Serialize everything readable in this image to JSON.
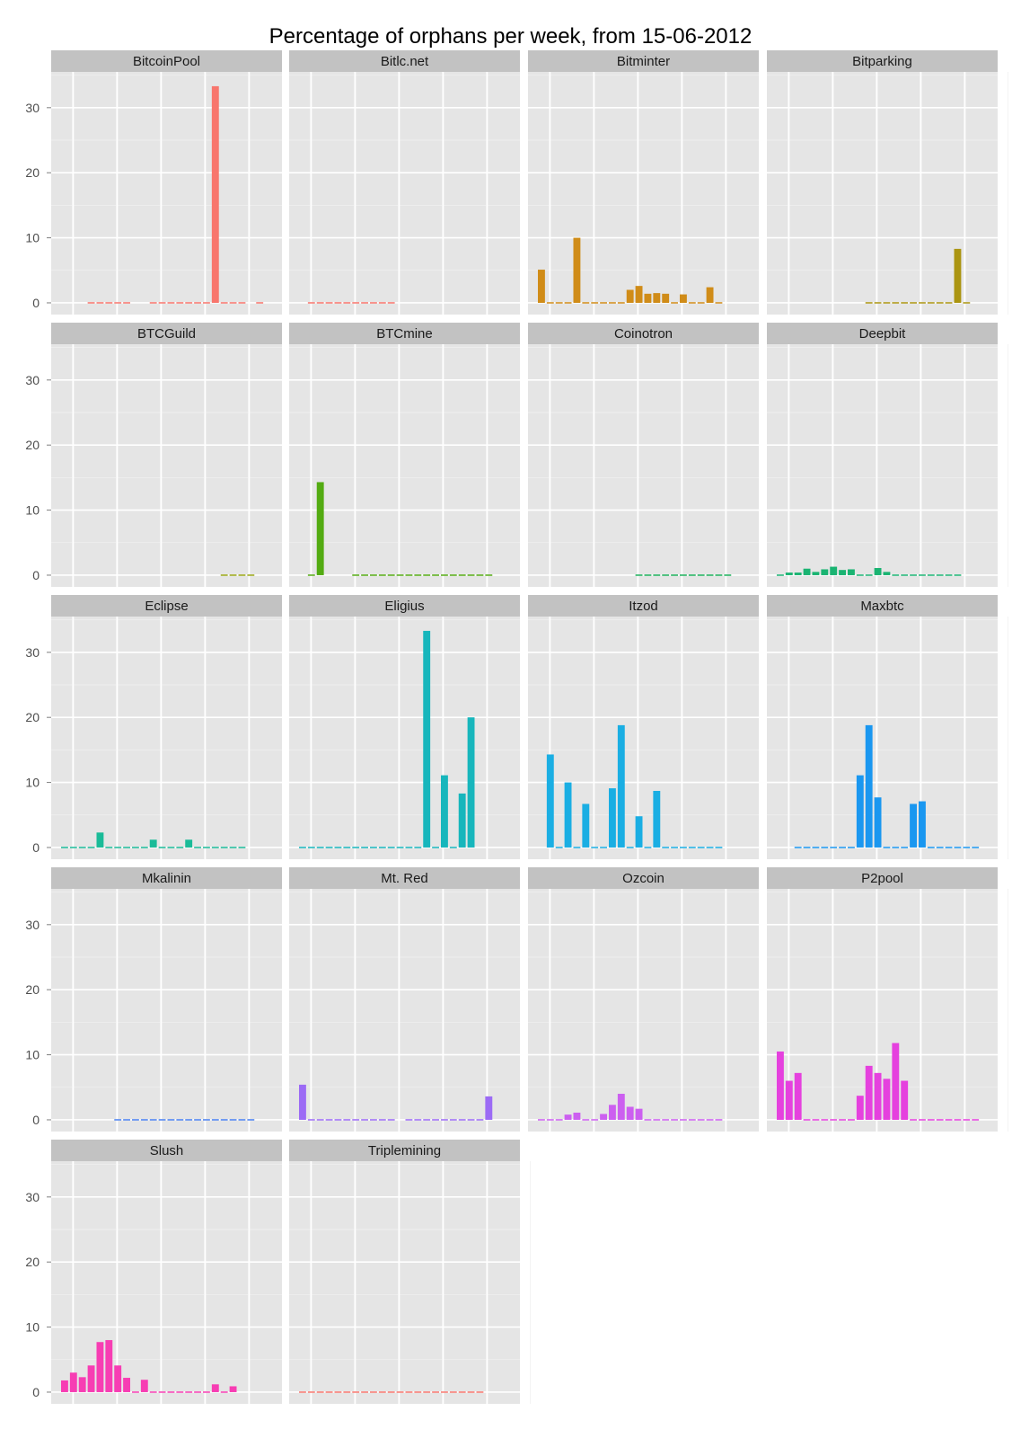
{
  "chart_data": {
    "type": "bar",
    "title": "Percentage of orphans per week, from 15-06-2012",
    "xlabel": "",
    "ylabel": "",
    "ylim": [
      -1.8,
      35.5
    ],
    "yticks": [
      0,
      10,
      20,
      30
    ],
    "weeks": 24,
    "grid": true,
    "panels": [
      {
        "name": "BitcoinPool",
        "color": "#F8766D",
        "values": [
          null,
          null,
          null,
          0,
          0,
          0,
          0,
          0,
          null,
          null,
          0,
          0,
          0,
          0,
          0,
          0,
          0,
          33.3,
          0,
          0,
          0,
          null,
          0,
          null
        ]
      },
      {
        "name": "Bitlc.net",
        "color": "#F8766D",
        "values": [
          null,
          0,
          0,
          0,
          0,
          0,
          0,
          0,
          0,
          0,
          0,
          null,
          null,
          null,
          null,
          null,
          null,
          null,
          null,
          null,
          null,
          null,
          null,
          null
        ]
      },
      {
        "name": "Bitminter",
        "color": "#D08C18",
        "values": [
          5.1,
          0,
          0,
          0,
          10.0,
          0,
          0,
          0,
          0,
          0,
          2.0,
          2.6,
          1.4,
          1.5,
          1.4,
          0,
          1.3,
          0,
          0,
          2.4,
          0,
          null,
          null,
          null
        ]
      },
      {
        "name": "Bitparking",
        "color": "#AB9511",
        "values": [
          null,
          null,
          null,
          null,
          null,
          null,
          null,
          null,
          null,
          null,
          0,
          0,
          0,
          0,
          0,
          0,
          0,
          0,
          0,
          0,
          8.3,
          0,
          null,
          null
        ]
      },
      {
        "name": "BTCGuild",
        "color": "#9AA613",
        "values": [
          null,
          null,
          null,
          null,
          null,
          null,
          null,
          null,
          null,
          null,
          null,
          null,
          null,
          null,
          null,
          null,
          null,
          null,
          0,
          0,
          0,
          0,
          null,
          null
        ]
      },
      {
        "name": "BTCmine",
        "color": "#53AB12",
        "values": [
          null,
          0,
          14.3,
          null,
          null,
          null,
          0,
          0,
          0,
          0,
          0,
          0,
          0,
          0,
          0,
          0,
          0,
          0,
          0,
          0,
          0,
          0,
          null,
          null
        ]
      },
      {
        "name": "Coinotron",
        "color": "#1AB05A",
        "values": [
          null,
          null,
          null,
          null,
          null,
          null,
          null,
          null,
          null,
          null,
          null,
          0,
          0,
          0,
          0,
          0,
          0,
          0,
          0,
          0,
          0,
          0,
          null,
          null
        ]
      },
      {
        "name": "Deepbit",
        "color": "#1AB472",
        "values": [
          0,
          0.4,
          0.4,
          1.0,
          0.5,
          0.9,
          1.3,
          0.8,
          0.9,
          0,
          0,
          1.1,
          0.5,
          0,
          0,
          0,
          0,
          0,
          0,
          0,
          0,
          null,
          null,
          null
        ]
      },
      {
        "name": "Eclipse",
        "color": "#1ABB98",
        "values": [
          0,
          0,
          0,
          0,
          2.3,
          0,
          0,
          0,
          0,
          0,
          1.2,
          0,
          0,
          0,
          1.2,
          0,
          0,
          0,
          0,
          0,
          0,
          null,
          null,
          null
        ]
      },
      {
        "name": "Eligius",
        "color": "#17B6BC",
        "values": [
          0,
          0,
          0,
          0,
          0,
          0,
          0,
          0,
          0,
          0,
          0,
          0,
          0,
          0,
          33.3,
          0,
          11.1,
          0,
          8.3,
          20.0,
          null,
          null,
          null,
          null
        ]
      },
      {
        "name": "Itzod",
        "color": "#1AAEE3",
        "values": [
          null,
          14.3,
          0,
          10.0,
          0,
          6.7,
          0,
          0,
          9.1,
          18.8,
          0,
          4.8,
          0,
          8.7,
          0,
          0,
          0,
          0,
          0,
          0,
          0,
          null,
          null,
          null
        ]
      },
      {
        "name": "Maxbtc",
        "color": "#1A97F0",
        "values": [
          null,
          null,
          0,
          0,
          0,
          0,
          0,
          0,
          0,
          11.1,
          18.8,
          7.7,
          0,
          0,
          0,
          6.7,
          7.1,
          0,
          0,
          0,
          0,
          0,
          0,
          null
        ]
      },
      {
        "name": "Mkalinin",
        "color": "#4A80EF",
        "values": [
          null,
          null,
          null,
          null,
          null,
          null,
          0,
          0,
          0,
          0,
          0,
          0,
          0,
          0,
          0,
          0,
          0,
          0,
          0,
          0,
          0,
          0,
          null,
          null
        ]
      },
      {
        "name": "Mt. Red",
        "color": "#9C6BF5",
        "values": [
          5.4,
          0,
          0,
          0,
          0,
          0,
          0,
          0,
          0,
          0,
          0,
          null,
          0,
          0,
          0,
          0,
          0,
          0,
          0,
          0,
          0,
          3.6,
          null,
          null
        ]
      },
      {
        "name": "Ozcoin",
        "color": "#CC5FF0",
        "values": [
          0,
          0,
          0,
          0.8,
          1.1,
          0,
          0,
          0.9,
          2.3,
          4.0,
          2.0,
          1.7,
          0,
          0,
          0,
          0,
          0,
          0,
          0,
          0,
          0,
          null,
          null,
          null
        ]
      },
      {
        "name": "P2pool",
        "color": "#E541DE",
        "values": [
          10.5,
          6.0,
          7.2,
          0,
          0,
          0,
          0,
          0,
          0,
          3.7,
          8.3,
          7.2,
          6.3,
          11.8,
          6.0,
          0,
          0,
          0,
          0,
          0,
          0,
          0,
          0,
          null
        ]
      },
      {
        "name": "Slush",
        "color": "#F73DB3",
        "values": [
          1.8,
          3.0,
          2.3,
          4.1,
          7.7,
          8.0,
          4.1,
          2.2,
          0,
          1.9,
          0,
          0,
          0,
          0,
          0,
          0,
          0,
          1.2,
          0,
          0.9,
          null,
          null,
          null,
          null
        ]
      },
      {
        "name": "Triplemining",
        "color": "#F8766D",
        "values": [
          0,
          0,
          0,
          0,
          0,
          0,
          0,
          0,
          0,
          0,
          0,
          0,
          0,
          0,
          0,
          0,
          0,
          0,
          0,
          0,
          0,
          null,
          null,
          null
        ]
      }
    ]
  }
}
